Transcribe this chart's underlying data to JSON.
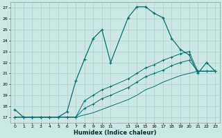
{
  "xlabel": "Humidex (Indice chaleur)",
  "bg_color": "#cce8e4",
  "grid_color": "#aad0cc",
  "line_color": "#007070",
  "xlim": [
    -0.5,
    23.5
  ],
  "ylim": [
    16.5,
    27.5
  ],
  "xticks": [
    0,
    1,
    2,
    3,
    4,
    5,
    6,
    7,
    8,
    9,
    10,
    11,
    13,
    14,
    15,
    16,
    17,
    18,
    19,
    20,
    21,
    22,
    23
  ],
  "yticks": [
    17,
    18,
    19,
    20,
    21,
    22,
    23,
    24,
    25,
    26,
    27
  ],
  "series1_x": [
    0,
    1,
    2,
    3,
    4,
    5,
    6,
    7,
    8,
    9,
    10,
    11,
    13,
    14,
    15,
    16,
    17,
    18,
    19,
    20,
    21,
    22,
    23
  ],
  "series1_y": [
    17.7,
    17.0,
    17.0,
    17.0,
    17.0,
    17.0,
    17.5,
    20.3,
    22.3,
    24.2,
    25.0,
    22.0,
    26.1,
    27.1,
    27.1,
    26.5,
    26.1,
    24.2,
    23.2,
    22.7,
    21.0,
    22.0,
    21.2
  ],
  "series2_x": [
    0,
    1,
    2,
    3,
    4,
    5,
    6,
    7,
    8,
    9,
    10,
    11,
    13,
    14,
    15,
    16,
    17,
    18,
    19,
    20,
    21,
    22,
    23
  ],
  "series2_y": [
    17.0,
    17.0,
    17.0,
    17.0,
    17.0,
    17.0,
    17.0,
    17.0,
    18.5,
    19.0,
    19.5,
    19.8,
    20.5,
    21.0,
    21.5,
    21.8,
    22.2,
    22.5,
    22.8,
    23.0,
    21.2,
    21.2,
    21.2
  ],
  "series3_x": [
    0,
    1,
    2,
    3,
    4,
    5,
    6,
    7,
    8,
    9,
    10,
    11,
    13,
    14,
    15,
    16,
    17,
    18,
    19,
    20,
    21,
    22,
    23
  ],
  "series3_y": [
    17.0,
    17.0,
    17.0,
    17.0,
    17.0,
    17.0,
    17.0,
    17.0,
    17.8,
    18.2,
    18.7,
    19.0,
    19.7,
    20.2,
    20.7,
    21.0,
    21.3,
    21.7,
    22.0,
    22.2,
    21.2,
    21.2,
    21.2
  ],
  "series4_x": [
    0,
    1,
    2,
    3,
    4,
    5,
    6,
    7,
    8,
    9,
    10,
    11,
    13,
    14,
    15,
    16,
    17,
    18,
    19,
    20,
    21,
    22,
    23
  ],
  "series4_y": [
    17.0,
    17.0,
    17.0,
    17.0,
    17.0,
    17.0,
    17.0,
    17.0,
    17.2,
    17.4,
    17.7,
    18.0,
    18.6,
    19.0,
    19.5,
    19.8,
    20.2,
    20.5,
    20.8,
    21.0,
    21.2,
    21.2,
    21.2
  ]
}
